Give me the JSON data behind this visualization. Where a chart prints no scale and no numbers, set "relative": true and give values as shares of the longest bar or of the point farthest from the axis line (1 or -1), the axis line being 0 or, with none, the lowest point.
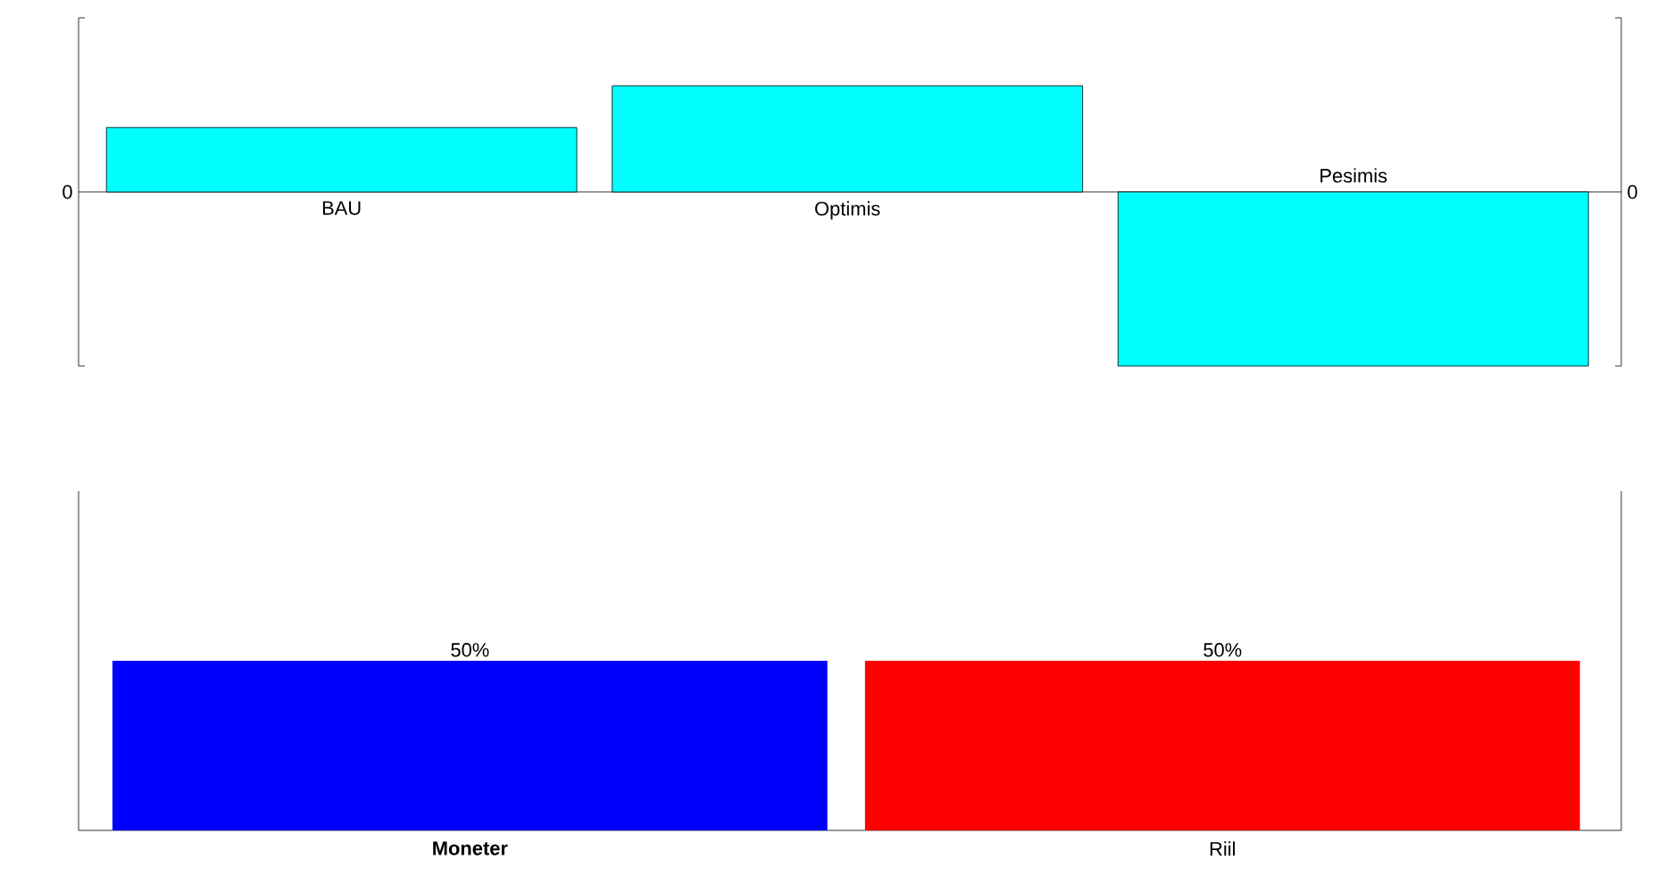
{
  "chart_data": [
    {
      "type": "bar",
      "categories": [
        "BAU",
        "Optimis",
        "Pesimis"
      ],
      "values": [
        0.37,
        0.61,
        -1
      ],
      "color": "#00ffff",
      "relative": true,
      "annotations": [
        "0",
        "0"
      ]
    },
    {
      "type": "bar",
      "categories": [
        "**Moneter**",
        "Riil"
      ],
      "values": [
        50,
        50
      ],
      "colors": [
        "#0000ff",
        "#ff0000"
      ],
      "value_labels": [
        "50%",
        "50%"
      ],
      "ylim": [
        0,
        100
      ],
      "tick_labels": "x"
    }
  ]
}
